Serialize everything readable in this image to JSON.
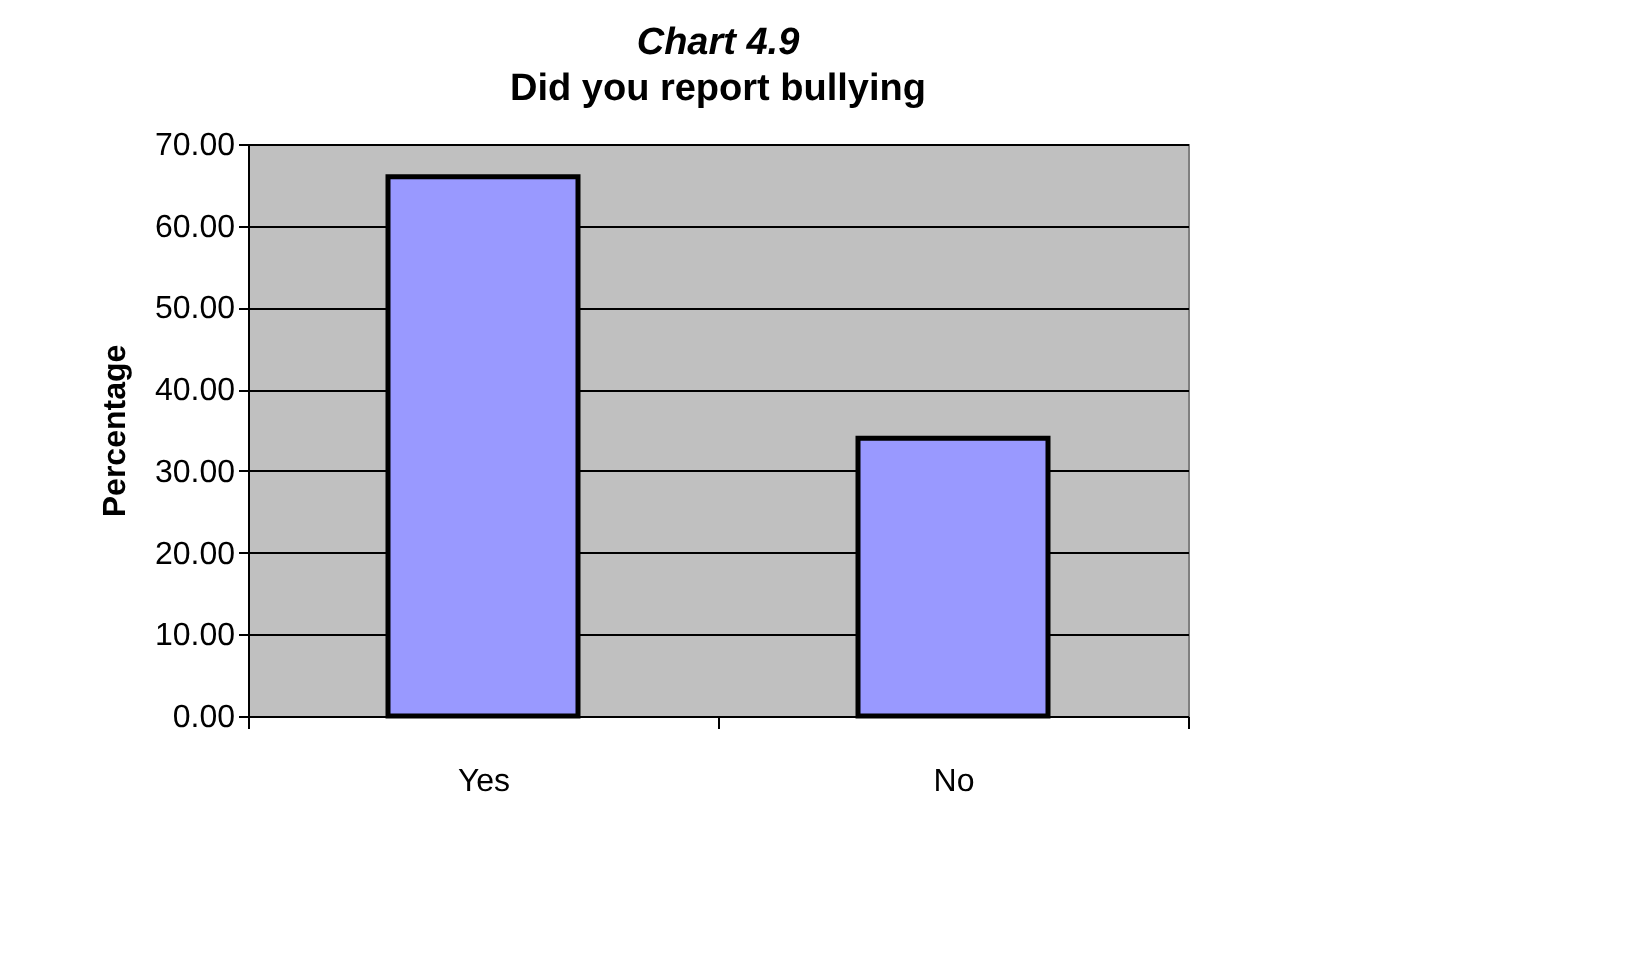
{
  "chart_data": {
    "type": "bar",
    "title": "Chart 4.9",
    "subtitle": "Did you report bullying",
    "ylabel": "Percentage",
    "categories": [
      "Yes",
      "No"
    ],
    "values": [
      66,
      34
    ],
    "color": "#9999ff",
    "ylim": [
      0,
      70
    ],
    "yticks": [
      {
        "value": 0,
        "label": "0.00"
      },
      {
        "value": 10,
        "label": "10.00"
      },
      {
        "value": 20,
        "label": "20.00"
      },
      {
        "value": 30,
        "label": "30.00"
      },
      {
        "value": 40,
        "label": "40.00"
      },
      {
        "value": 50,
        "label": "50.00"
      },
      {
        "value": 60,
        "label": "60.00"
      },
      {
        "value": 70,
        "label": "70.00"
      }
    ],
    "grid": "y"
  }
}
